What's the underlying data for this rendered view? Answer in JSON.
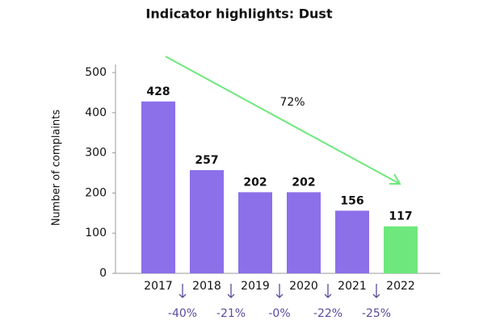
{
  "chart_data": {
    "type": "bar",
    "title": "Indicator highlights: Dust",
    "ylabel": "Number of complaints",
    "categories": [
      "2017",
      "2018",
      "2019",
      "2020",
      "2021",
      "2022"
    ],
    "values": [
      428,
      257,
      202,
      202,
      156,
      117
    ],
    "colors": [
      "#8b70ea",
      "#8b70ea",
      "#8b70ea",
      "#8b70ea",
      "#8b70ea",
      "#6ee87c"
    ],
    "ylim": [
      0,
      500
    ],
    "yticks": [
      0,
      100,
      200,
      300,
      400,
      500
    ],
    "overall_change": "72%",
    "changes": [
      "-40%",
      "-21%",
      "-0%",
      "-22%",
      "-25%"
    ]
  }
}
